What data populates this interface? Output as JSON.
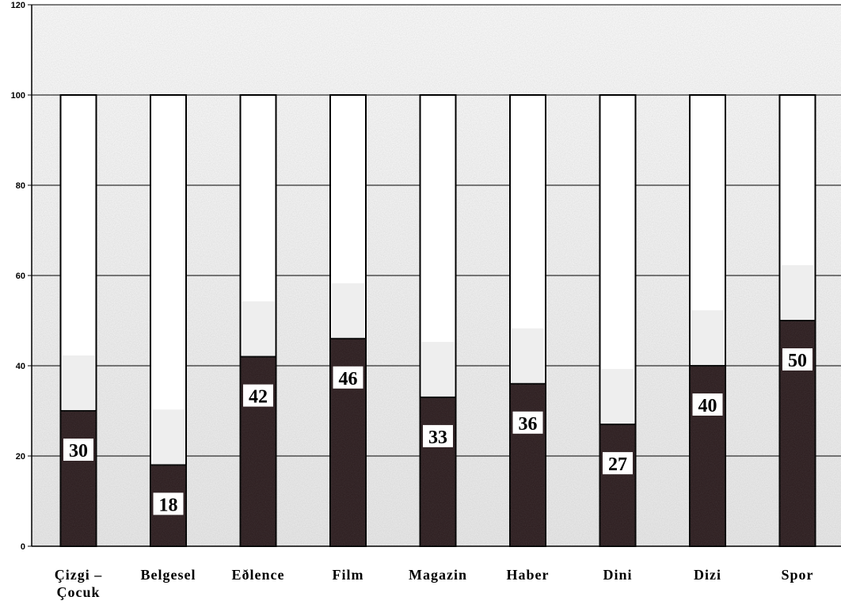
{
  "chart_data": {
    "type": "bar",
    "categories": [
      "Çizgi – Çocuk",
      "Belgesel",
      "Eðlence",
      "Film",
      "Magazin",
      "Haber",
      "Dini",
      "Dizi",
      "Spor"
    ],
    "category_lines": [
      [
        "Çizgi –",
        "Çocuk"
      ],
      [
        "Belgesel"
      ],
      [
        "Eðlence"
      ],
      [
        "Film"
      ],
      [
        "Magazin"
      ],
      [
        "Haber"
      ],
      [
        "Dini"
      ],
      [
        "Dizi"
      ],
      [
        "Spor"
      ]
    ],
    "series": [
      {
        "values": [
          30,
          18,
          42,
          46,
          33,
          36,
          27,
          40,
          50
        ]
      },
      {
        "values": [
          100,
          100,
          100,
          100,
          100,
          100,
          100,
          100,
          100
        ]
      }
    ],
    "data_labels": [
      "30",
      "18",
      "42",
      "46",
      "33",
      "36",
      "27",
      "40",
      "50"
    ],
    "ylim": [
      0,
      120
    ],
    "yticks": [
      0,
      20,
      40,
      60,
      80,
      100,
      120
    ],
    "grid": true,
    "title": "",
    "xlabel": "",
    "ylabel": "",
    "colors": {
      "value_bar": "#2a1a1c",
      "total_bar": "#ffffff",
      "outline": "#000000",
      "grid": "#000000"
    }
  }
}
